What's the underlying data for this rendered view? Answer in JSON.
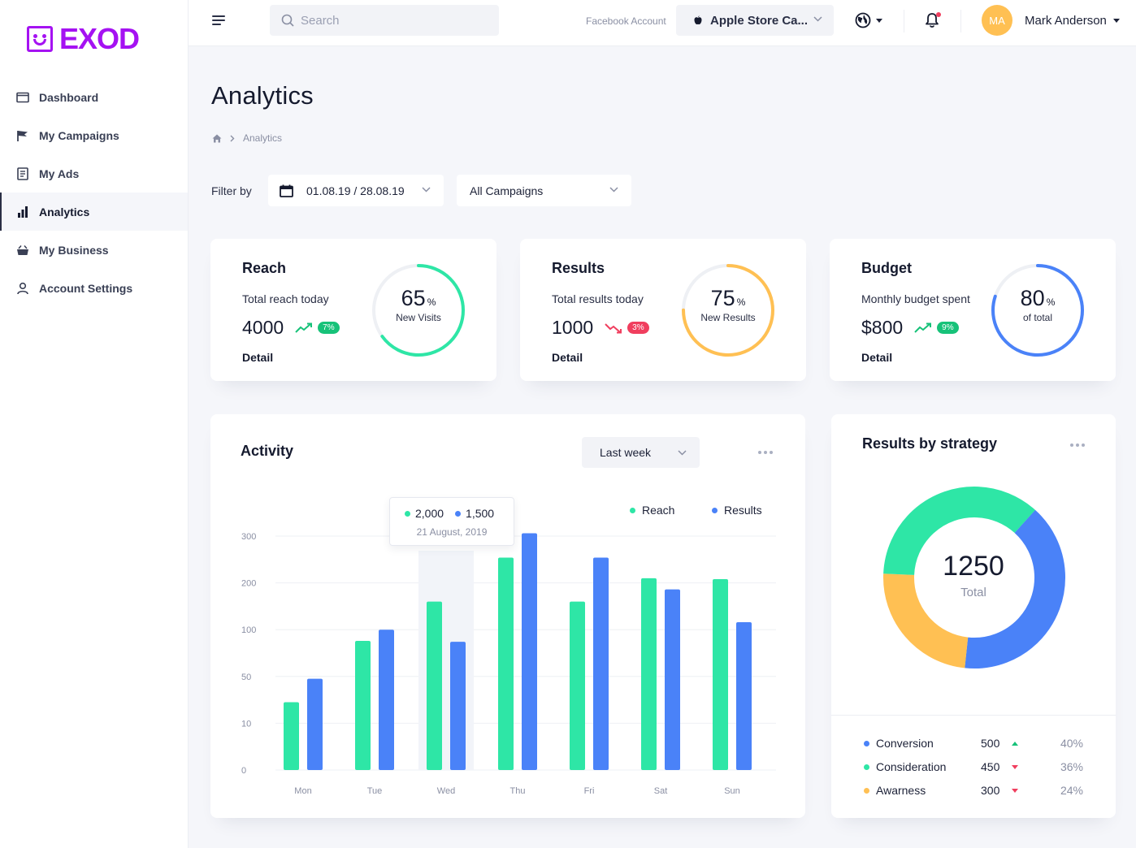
{
  "brand": {
    "name": "EXOD",
    "color": "#a512f2"
  },
  "sidebar": {
    "items": [
      {
        "label": "Dashboard",
        "icon": "browser-window-icon",
        "active": false
      },
      {
        "label": "My Campaigns",
        "icon": "flag-icon",
        "active": false
      },
      {
        "label": "My Ads",
        "icon": "document-icon",
        "active": false
      },
      {
        "label": "Analytics",
        "icon": "bar-chart-icon",
        "active": true
      },
      {
        "label": "My Business",
        "icon": "briefcase-icon",
        "active": false
      },
      {
        "label": "Account Settings",
        "icon": "user-icon",
        "active": false
      }
    ]
  },
  "header": {
    "search_placeholder": "Search",
    "account_label": "Facebook Account",
    "account_value": "Apple Store Ca...",
    "avatar_initials": "MA",
    "user_name": "Mark Anderson"
  },
  "page": {
    "title": "Analytics",
    "breadcrumb": [
      "Analytics"
    ]
  },
  "filters": {
    "label": "Filter by",
    "date_range": "01.08.19 / 28.08.19",
    "campaign": "All Campaigns"
  },
  "kpis": [
    {
      "title": "Reach",
      "subtitle": "Total reach today",
      "value": "4000",
      "trend": "up",
      "badge": "7%",
      "detail": "Detail",
      "percent": 65,
      "ring_label": "New Visits",
      "ring_color": "#2ee6a6"
    },
    {
      "title": "Results",
      "subtitle": "Total results today",
      "value": "1000",
      "trend": "down",
      "badge": "3%",
      "detail": "Detail",
      "percent": 75,
      "ring_label": "New Results",
      "ring_color": "#ffc053"
    },
    {
      "title": "Budget",
      "subtitle": "Monthly budget spent",
      "value": "$800",
      "trend": "up",
      "badge": "9%",
      "detail": "Detail",
      "percent": 80,
      "ring_label": "of total",
      "ring_color": "#4a82f8"
    }
  ],
  "activity": {
    "title": "Activity",
    "period": "Last week",
    "tooltip": {
      "reach": "2,000",
      "results": "1,500",
      "date": "21 August, 2019"
    },
    "chart_data": {
      "type": "bar",
      "categories": [
        "Mon",
        "Tue",
        "Wed",
        "Thu",
        "Fri",
        "Sat",
        "Sun"
      ],
      "y_ticks": [
        "300",
        "200",
        "100",
        "50",
        "10",
        "0"
      ],
      "series": [
        {
          "name": "Reach",
          "color": "#2ee6a6",
          "values": [
            28,
            88,
            160,
            254,
            160,
            210,
            208
          ]
        },
        {
          "name": "Results",
          "color": "#4a82f8",
          "values": [
            48,
            100,
            87,
            306,
            254,
            186,
            116
          ]
        }
      ],
      "highlight_category": "Wed"
    }
  },
  "strategy": {
    "title": "Results by strategy",
    "total": "1250",
    "total_label": "Total",
    "chart_data": {
      "type": "pie",
      "labels": [
        "Conversion",
        "Consideration",
        "Awarness"
      ],
      "values": [
        500,
        450,
        300
      ],
      "colors": [
        "#4a82f8",
        "#2ee6a6",
        "#ffc053"
      ]
    },
    "rows": [
      {
        "name": "Conversion",
        "value": "500",
        "trend": "up",
        "pct": "40%",
        "color": "#4a82f8"
      },
      {
        "name": "Consideration",
        "value": "450",
        "trend": "down",
        "pct": "36%",
        "color": "#2ee6a6"
      },
      {
        "name": "Awarness",
        "value": "300",
        "trend": "down",
        "pct": "24%",
        "color": "#ffc053"
      }
    ]
  }
}
